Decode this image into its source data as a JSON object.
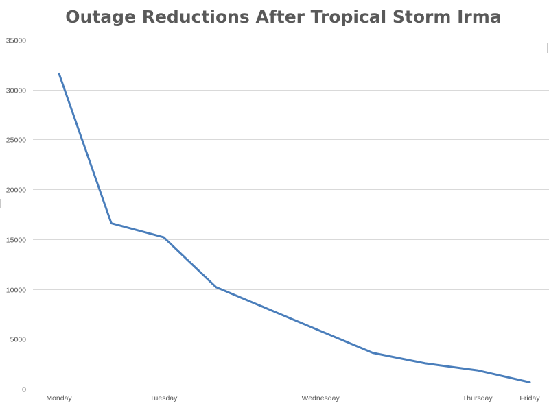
{
  "chart_data": {
    "type": "line",
    "title": "Outage Reductions After Tropical Storm Irma",
    "xlabel": "",
    "ylabel": "",
    "ylim": [
      0,
      35000
    ],
    "y_ticks": [
      "0",
      "5000",
      "10000",
      "15000",
      "20000",
      "25000",
      "30000",
      "35000"
    ],
    "x_ticks": [
      {
        "label": "Monday",
        "x": 0
      },
      {
        "label": "Tuesday",
        "x": 2
      },
      {
        "label": "Wednesday",
        "x": 5
      },
      {
        "label": "Thursday",
        "x": 8
      },
      {
        "label": "Friday",
        "x": 9
      }
    ],
    "x_range": [
      0,
      9
    ],
    "grid": true,
    "legend": "none",
    "series": [
      {
        "color": "#4a7ebb",
        "points": [
          {
            "x": 0,
            "y": 31600
          },
          {
            "x": 1,
            "y": 16600
          },
          {
            "x": 2,
            "y": 15200
          },
          {
            "x": 3,
            "y": 10200
          },
          {
            "x": 4,
            "y": 8000
          },
          {
            "x": 5,
            "y": 5800
          },
          {
            "x": 6,
            "y": 3600
          },
          {
            "x": 7,
            "y": 2550
          },
          {
            "x": 8,
            "y": 1850
          },
          {
            "x": 9,
            "y": 650
          }
        ]
      }
    ]
  }
}
